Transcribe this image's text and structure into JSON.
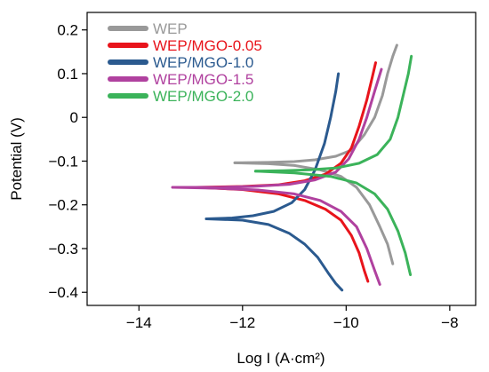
{
  "chart_data": {
    "type": "line",
    "xlabel": "Log I (A·cm²)",
    "ylabel": "Potential (V)",
    "xlim": [
      -15,
      -7.5
    ],
    "ylim": [
      -0.43,
      0.24
    ],
    "xticks": [
      -14,
      -12,
      -10,
      -8
    ],
    "yticks": [
      -0.4,
      -0.3,
      -0.2,
      -0.1,
      0,
      0.1,
      0.2
    ],
    "xtick_labels": [
      "−14",
      "−12",
      "−10",
      "−8"
    ],
    "ytick_labels": [
      "−0.4",
      "−0.3",
      "−0.2",
      "−0.1",
      "0",
      "0.1",
      "0.2"
    ],
    "grid": false,
    "legend_position": "top-left",
    "series": [
      {
        "name": "WEP",
        "color": "#999999",
        "branches": [
          [
            [
              -12.15,
              -0.104
            ],
            [
              -11.5,
              -0.103
            ],
            [
              -11.0,
              -0.101
            ],
            [
              -10.6,
              -0.097
            ],
            [
              -10.2,
              -0.089
            ],
            [
              -9.9,
              -0.075
            ],
            [
              -9.65,
              -0.04
            ],
            [
              -9.45,
              0.0
            ],
            [
              -9.3,
              0.05
            ],
            [
              -9.2,
              0.1
            ],
            [
              -9.1,
              0.14
            ],
            [
              -9.02,
              0.165
            ]
          ],
          [
            [
              -12.15,
              -0.104
            ],
            [
              -11.5,
              -0.106
            ],
            [
              -11.0,
              -0.11
            ],
            [
              -10.5,
              -0.12
            ],
            [
              -10.1,
              -0.135
            ],
            [
              -9.8,
              -0.16
            ],
            [
              -9.55,
              -0.2
            ],
            [
              -9.35,
              -0.25
            ],
            [
              -9.2,
              -0.29
            ],
            [
              -9.1,
              -0.335
            ]
          ]
        ]
      },
      {
        "name": "WEP/MGO-0.05",
        "color": "#e8141b",
        "branches": [
          [
            [
              -12.9,
              -0.16
            ],
            [
              -12.0,
              -0.158
            ],
            [
              -11.3,
              -0.154
            ],
            [
              -10.8,
              -0.145
            ],
            [
              -10.4,
              -0.13
            ],
            [
              -10.1,
              -0.105
            ],
            [
              -9.9,
              -0.07
            ],
            [
              -9.75,
              -0.02
            ],
            [
              -9.6,
              0.04
            ],
            [
              -9.5,
              0.09
            ],
            [
              -9.43,
              0.125
            ]
          ],
          [
            [
              -12.9,
              -0.16
            ],
            [
              -12.0,
              -0.165
            ],
            [
              -11.3,
              -0.175
            ],
            [
              -10.8,
              -0.19
            ],
            [
              -10.4,
              -0.21
            ],
            [
              -10.1,
              -0.235
            ],
            [
              -9.9,
              -0.27
            ],
            [
              -9.75,
              -0.31
            ],
            [
              -9.65,
              -0.35
            ],
            [
              -9.58,
              -0.375
            ]
          ]
        ]
      },
      {
        "name": "WEP/MGO-1.0",
        "color": "#2b5a8f",
        "branches": [
          [
            [
              -12.7,
              -0.232
            ],
            [
              -12.2,
              -0.23
            ],
            [
              -11.8,
              -0.225
            ],
            [
              -11.4,
              -0.215
            ],
            [
              -11.05,
              -0.195
            ],
            [
              -10.8,
              -0.165
            ],
            [
              -10.6,
              -0.12
            ],
            [
              -10.42,
              -0.06
            ],
            [
              -10.3,
              0.0
            ],
            [
              -10.2,
              0.06
            ],
            [
              -10.15,
              0.1
            ]
          ],
          [
            [
              -12.7,
              -0.232
            ],
            [
              -12.0,
              -0.235
            ],
            [
              -11.5,
              -0.245
            ],
            [
              -11.1,
              -0.265
            ],
            [
              -10.8,
              -0.29
            ],
            [
              -10.55,
              -0.32
            ],
            [
              -10.35,
              -0.355
            ],
            [
              -10.2,
              -0.38
            ],
            [
              -10.08,
              -0.395
            ]
          ]
        ]
      },
      {
        "name": "WEP/MGO-1.5",
        "color": "#b0419f",
        "branches": [
          [
            [
              -13.35,
              -0.16
            ],
            [
              -12.5,
              -0.16
            ],
            [
              -11.8,
              -0.158
            ],
            [
              -11.1,
              -0.153
            ],
            [
              -10.6,
              -0.143
            ],
            [
              -10.2,
              -0.125
            ],
            [
              -9.95,
              -0.095
            ],
            [
              -9.75,
              -0.05
            ],
            [
              -9.6,
              0.0
            ],
            [
              -9.45,
              0.06
            ],
            [
              -9.32,
              0.11
            ]
          ],
          [
            [
              -13.35,
              -0.16
            ],
            [
              -12.5,
              -0.162
            ],
            [
              -11.7,
              -0.166
            ],
            [
              -11.0,
              -0.175
            ],
            [
              -10.5,
              -0.19
            ],
            [
              -10.1,
              -0.215
            ],
            [
              -9.8,
              -0.25
            ],
            [
              -9.6,
              -0.3
            ],
            [
              -9.45,
              -0.35
            ],
            [
              -9.35,
              -0.382
            ]
          ]
        ]
      },
      {
        "name": "WEP/MGO-2.0",
        "color": "#3bb35a",
        "branches": [
          [
            [
              -11.75,
              -0.123
            ],
            [
              -11.2,
              -0.122
            ],
            [
              -10.7,
              -0.12
            ],
            [
              -10.2,
              -0.116
            ],
            [
              -9.75,
              -0.105
            ],
            [
              -9.4,
              -0.085
            ],
            [
              -9.15,
              -0.05
            ],
            [
              -9.0,
              0.0
            ],
            [
              -8.88,
              0.06
            ],
            [
              -8.8,
              0.1
            ],
            [
              -8.74,
              0.14
            ]
          ],
          [
            [
              -11.75,
              -0.123
            ],
            [
              -11.0,
              -0.127
            ],
            [
              -10.3,
              -0.135
            ],
            [
              -9.8,
              -0.15
            ],
            [
              -9.45,
              -0.175
            ],
            [
              -9.2,
              -0.21
            ],
            [
              -9.0,
              -0.26
            ],
            [
              -8.86,
              -0.31
            ],
            [
              -8.76,
              -0.36
            ]
          ]
        ]
      }
    ]
  }
}
